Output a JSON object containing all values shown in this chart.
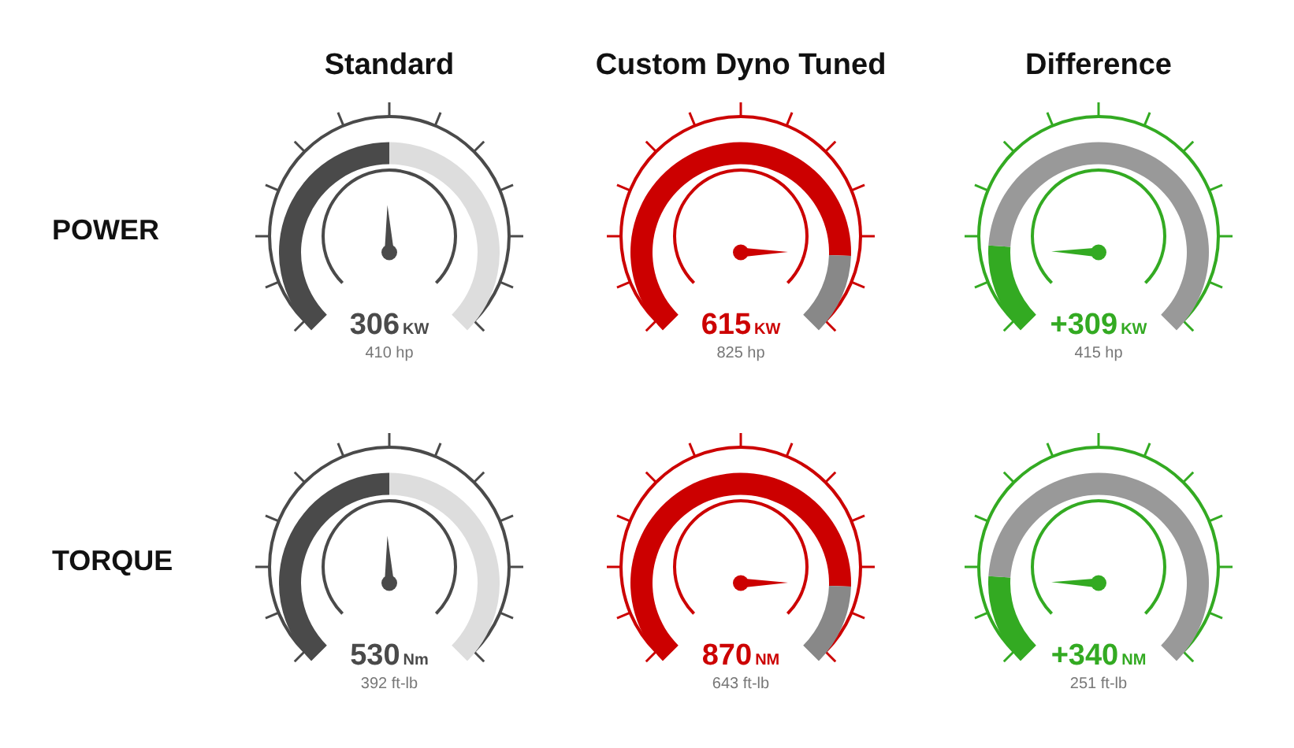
{
  "chart_data": [
    {
      "type": "donut",
      "title": "Standard",
      "ylabel": "POWER",
      "categories": [
        null,
        null
      ],
      "values": [
        50,
        50
      ],
      "colors": [
        "#4a4a4a",
        "#dddddd"
      ],
      "legend": false,
      "annotations": [
        "306",
        "KW",
        "410 hp"
      ]
    },
    {
      "type": "donut",
      "title": "Custom Dyno Tuned",
      "categories": [
        null,
        null
      ],
      "values": [
        84,
        16
      ],
      "colors": [
        "#cc0000",
        "#888888"
      ],
      "legend": false,
      "annotations": [
        "615",
        "KW",
        "825 hp"
      ]
    },
    {
      "type": "donut",
      "title": "Difference",
      "categories": [
        null,
        null
      ],
      "values": [
        18,
        82
      ],
      "colors": [
        "#33aa22",
        "#999999"
      ],
      "legend": false,
      "annotations": [
        "+309",
        "KW",
        "415 hp"
      ]
    },
    {
      "type": "donut",
      "ylabel": "TORQUE",
      "categories": [
        null,
        null
      ],
      "values": [
        50,
        50
      ],
      "colors": [
        "#4a4a4a",
        "#dddddd"
      ],
      "legend": false,
      "annotations": [
        "530",
        "Nm",
        "392 ft-lb"
      ]
    },
    {
      "type": "donut",
      "categories": [
        null,
        null
      ],
      "values": [
        84,
        16
      ],
      "colors": [
        "#cc0000",
        "#888888"
      ],
      "legend": false,
      "annotations": [
        "870",
        "NM",
        "643 ft-lb"
      ]
    },
    {
      "type": "donut",
      "categories": [
        null,
        null
      ],
      "values": [
        18,
        82
      ],
      "colors": [
        "#33aa22",
        "#999999"
      ],
      "legend": false,
      "annotations": [
        "+340",
        "NM",
        "251 ft-lb"
      ]
    }
  ]
}
